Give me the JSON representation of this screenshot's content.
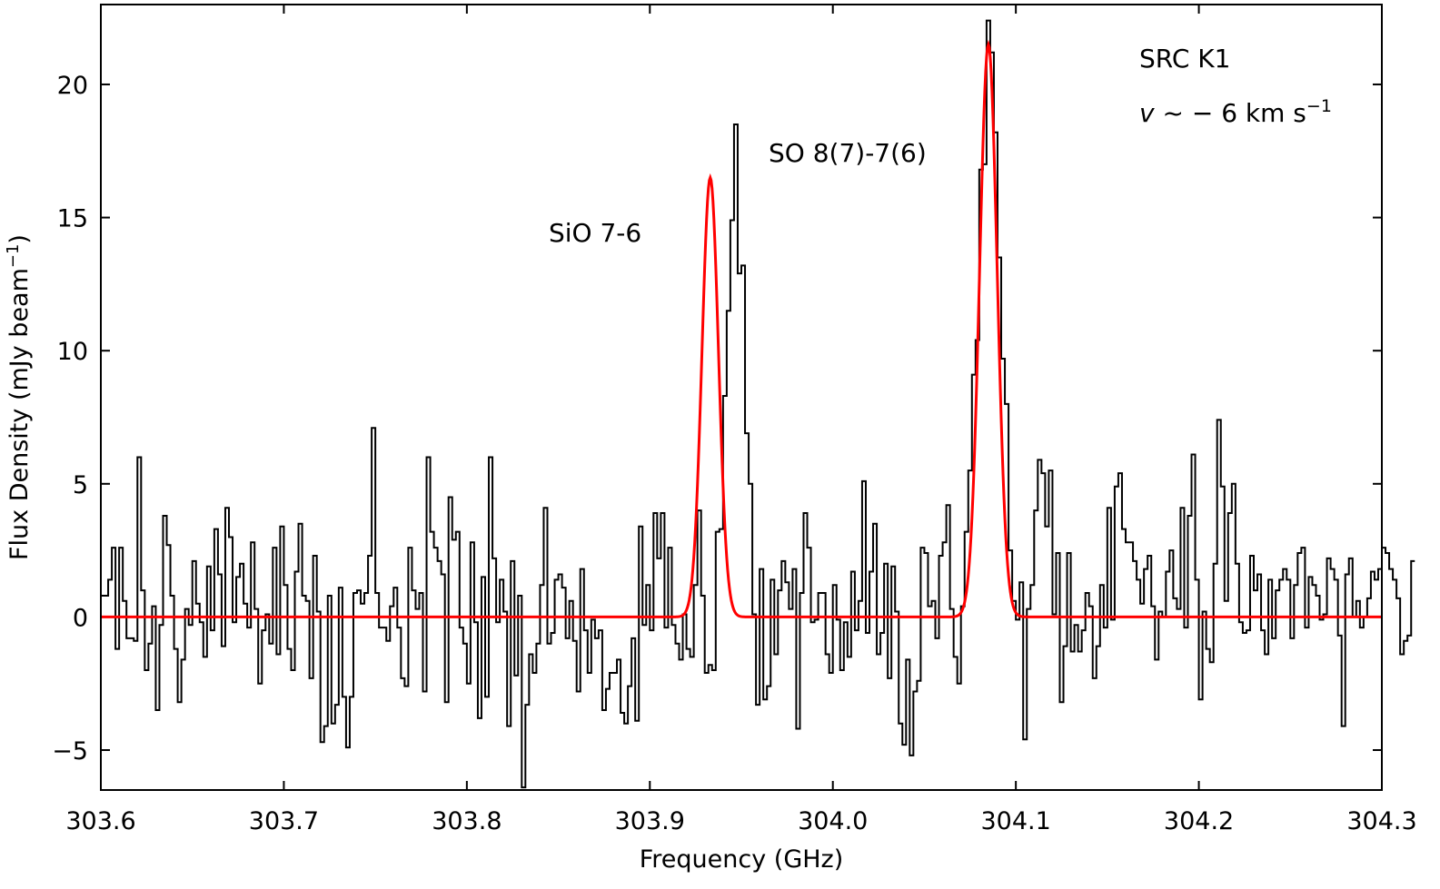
{
  "chart_data": {
    "type": "line",
    "xlabel": "Frequency (GHz)",
    "ylabel_main": "Flux Density (mJy beam",
    "ylabel_sup": "−1",
    "ylabel_close": ")",
    "xlim": [
      303.6,
      304.3
    ],
    "ylim": [
      -6.5,
      23.0
    ],
    "x_ticks": [
      303.6,
      303.7,
      303.8,
      303.9,
      304.0,
      304.1,
      304.2,
      304.3
    ],
    "x_tick_labels": [
      "303.6",
      "303.7",
      "303.8",
      "303.9",
      "304.0",
      "304.1",
      "304.2",
      "304.3"
    ],
    "y_ticks": [
      -5,
      0,
      5,
      10,
      15,
      20
    ],
    "y_tick_labels": [
      "−5",
      "0",
      "5",
      "10",
      "15",
      "20"
    ],
    "grid": false,
    "annotations": {
      "sio": "SiO 7-6",
      "so": "SO 8(7)-7(6)",
      "source": "SRC K1",
      "vel_italic": "v",
      "vel_text": " ~ − 6 km s",
      "vel_sup": "−1"
    },
    "series": [
      {
        "style": "step",
        "color": "#000000",
        "x_start": 303.6,
        "x_step": 0.002,
        "values": [
          0.8,
          0.8,
          1.4,
          2.6,
          -1.2,
          2.6,
          0.6,
          -0.8,
          -0.8,
          -0.9,
          6.0,
          1.0,
          -2.0,
          -1.0,
          0.4,
          -3.5,
          -0.3,
          3.8,
          2.7,
          0.8,
          -1.2,
          -3.2,
          -1.6,
          0.3,
          -0.3,
          2.1,
          0.5,
          -0.2,
          -1.5,
          1.9,
          -0.5,
          3.3,
          1.6,
          -1.1,
          4.1,
          3.0,
          -0.2,
          1.5,
          2.0,
          0.5,
          -0.4,
          2.8,
          0.3,
          -2.5,
          -0.5,
          0.1,
          -1.0,
          2.6,
          -1.4,
          3.4,
          1.2,
          -1.2,
          -2.0,
          1.7,
          3.5,
          0.8,
          0.6,
          -2.3,
          2.3,
          0.2,
          -4.7,
          -4.1,
          0.8,
          -4.0,
          -3.3,
          1.1,
          -3.0,
          -4.9,
          -3.0,
          0.9,
          1.0,
          0.5,
          0.9,
          2.3,
          7.1,
          0.9,
          -0.4,
          -0.4,
          -0.9,
          0.4,
          1.1,
          -0.4,
          -2.3,
          -2.6,
          2.6,
          1.0,
          0.3,
          0.9,
          -2.8,
          6.0,
          3.2,
          2.6,
          2.1,
          1.6,
          -3.2,
          4.5,
          2.9,
          3.2,
          -0.4,
          -1.0,
          -2.5,
          2.8,
          -0.2,
          -3.8,
          1.5,
          -3.0,
          6.0,
          2.2,
          -0.2,
          1.4,
          0.2,
          -4.1,
          2.1,
          -2.2,
          0.8,
          -6.4,
          -3.3,
          -1.4,
          -2.1,
          -1.0,
          1.2,
          4.1,
          -1.0,
          -0.6,
          1.4,
          1.6,
          1.1,
          -0.8,
          0.6,
          -0.9,
          -2.8,
          1.8,
          -0.5,
          -2.1,
          -0.1,
          -0.8,
          -0.5,
          -3.5,
          -2.7,
          -2.1,
          -2.1,
          -1.6,
          -3.6,
          -4.0,
          -2.6,
          -0.8,
          -3.9,
          3.4,
          -0.3,
          1.2,
          -0.5,
          3.9,
          2.2,
          3.9,
          -0.4,
          2.6,
          -0.3,
          -1.0,
          -1.6,
          0.1,
          -1.2,
          -1.5,
          1.2,
          4.0,
          0.8,
          -2.1,
          -1.8,
          -2.0,
          3.2,
          3.3,
          8.3,
          11.5,
          14.9,
          18.5,
          12.9,
          13.2,
          6.9,
          5.0,
          0.1,
          -3.3,
          1.8,
          -3.1,
          -2.6,
          1.4,
          -1.4,
          1.0,
          2.1,
          1.3,
          0.3,
          1.8,
          -4.2,
          0.9,
          3.9,
          2.6,
          -0.2,
          -0.1,
          0.9,
          0.9,
          -1.4,
          -2.1,
          1.2,
          -0.1,
          -2.0,
          -0.2,
          -1.5,
          1.7,
          -0.5,
          0.6,
          5.1,
          -0.6,
          1.7,
          3.5,
          -1.4,
          -0.6,
          2.0,
          -2.3,
          1.9,
          0.2,
          -4.0,
          -4.8,
          -1.6,
          -5.2,
          -2.8,
          -2.4,
          2.6,
          2.4,
          0.4,
          0.6,
          -0.8,
          2.3,
          2.8,
          4.2,
          0.3,
          -1.5,
          -2.5,
          0.4,
          3.2,
          5.5,
          9.1,
          10.4,
          16.8,
          17.0,
          22.4,
          21.2,
          18.2,
          13.5,
          9.7,
          8.0,
          2.5,
          0.6,
          -0.1,
          1.3,
          -4.6,
          0.3,
          1.2,
          4.0,
          5.9,
          5.4,
          3.4,
          5.5,
          0.1,
          2.4,
          -3.2,
          -1.1,
          2.4,
          -1.3,
          -0.3,
          -1.3,
          -0.5,
          0.9,
          0.4,
          -2.3,
          -1.1,
          1.2,
          -0.4,
          4.1,
          -0.1,
          4.9,
          5.4,
          3.3,
          2.8,
          2.8,
          2.1,
          1.4,
          0.5,
          1.8,
          2.3,
          0.4,
          -1.6,
          0.2,
          0.0,
          1.7,
          2.5,
          0.7,
          0.3,
          4.1,
          -0.4,
          3.8,
          6.1,
          1.4,
          -3.1,
          0.2,
          -1.2,
          -1.7,
          2.0,
          7.4,
          4.9,
          0.6,
          3.9,
          5.0,
          2.0,
          -0.2,
          -0.6,
          -0.5,
          2.3,
          1.0,
          1.6,
          -0.5,
          -1.4,
          1.4,
          -0.8,
          1.0,
          1.4,
          1.8,
          1.4,
          -0.8,
          1.2,
          2.4,
          2.6,
          -0.4,
          1.5,
          1.2,
          0.8,
          -0.1,
          0.1,
          2.2,
          1.8,
          1.4,
          -0.7,
          -4.1,
          1.6,
          2.2,
          0.0,
          0.6,
          -0.4,
          0.0,
          0.7,
          1.7,
          1.4,
          1.8,
          2.6,
          2.4,
          1.8,
          1.4,
          0.7,
          -1.4,
          -0.9,
          -0.7,
          2.1
        ]
      },
      {
        "style": "gaussian-fit",
        "color": "#ff0000",
        "components": [
          {
            "center": 303.933,
            "amplitude": 16.5,
            "sigma": 0.0045
          },
          {
            "center": 304.085,
            "amplitude": 21.5,
            "sigma": 0.0048
          }
        ]
      }
    ]
  }
}
